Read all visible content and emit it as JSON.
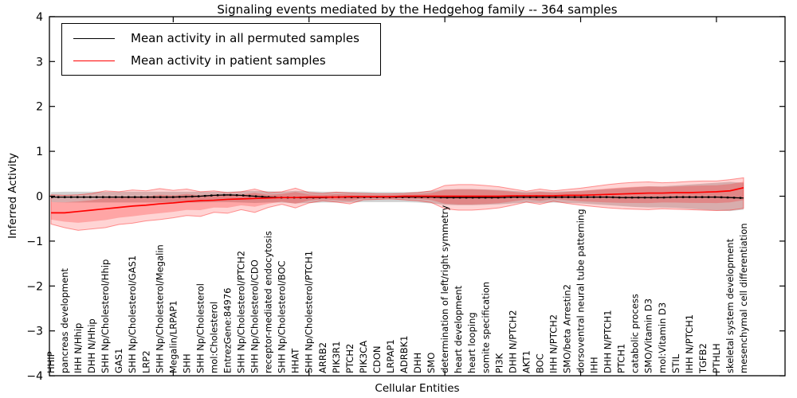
{
  "title": "Signaling events mediated by the Hedgehog family -- 364 samples",
  "chart_data": {
    "type": "line",
    "title": "Signaling events mediated by the Hedgehog family -- 364 samples",
    "xlabel": "Cellular Entities",
    "ylabel": "Inferred Activity",
    "ylim": [
      -4,
      4
    ],
    "yticks": [
      -4,
      -3,
      -2,
      -1,
      0,
      1,
      2,
      3,
      4
    ],
    "xticks_major": [
      10,
      20,
      30,
      40,
      50
    ],
    "grid": false,
    "legend_position": "upper left",
    "legend": [
      {
        "label": "Mean activity in all permuted samples",
        "color": "#000000"
      },
      {
        "label": "Mean activity in patient samples",
        "color": "#ff0000"
      }
    ],
    "categories": [
      "HHIP",
      "pancreas development",
      "IHH N/Hhip",
      "DHH N/Hhip",
      "SHH Np/Cholesterol/Hhip",
      "GAS1",
      "SHH Np/Cholesterol/GAS1",
      "LRP2",
      "SHH Np/Cholesterol/Megalin",
      "Megalin/LRPAP1",
      "SHH",
      "SHH Np/Cholesterol",
      "mol:Cholesterol",
      "EntrezGene:84976",
      "SHH Np/Cholesterol/PTCH2",
      "SHH Np/Cholesterol/CDO",
      "receptor-mediated endocytosis",
      "SHH Np/Cholesterol/BOC",
      "HHAT",
      "SHH Np/Cholesterol/PTCH1",
      "ARRB2",
      "PIK3R1",
      "PTCH2",
      "PIK3CA",
      "CDON",
      "LRPAP1",
      "ADRBK1",
      "DHH",
      "SMO",
      "determination of left/right symmetry",
      "heart development",
      "heart looping",
      "somite specification",
      "PI3K",
      "DHH N/PTCH2",
      "AKT1",
      "BOC",
      "IHH N/PTCH2",
      "SMO/beta Arrestin2",
      "dorsoventral neural tube patterning",
      "IHH",
      "DHH N/PTCH1",
      "PTCH1",
      "catabolic process",
      "SMO/Vitamin D3",
      "mol:Vitamin D3",
      "STIL",
      "IHH N/PTCH1",
      "TGFB2",
      "PTHLH",
      "skeletal system development",
      "mesenchymal cell differentiation"
    ],
    "series": [
      {
        "name": "Mean activity in all permuted samples",
        "color": "#000000",
        "values": [
          -0.02,
          -0.02,
          -0.02,
          -0.02,
          -0.02,
          -0.02,
          -0.02,
          -0.02,
          -0.02,
          -0.02,
          -0.01,
          0.0,
          0.02,
          0.03,
          0.02,
          0.0,
          -0.02,
          -0.03,
          -0.03,
          -0.03,
          -0.03,
          -0.02,
          -0.02,
          -0.02,
          -0.02,
          -0.02,
          -0.02,
          -0.02,
          -0.02,
          -0.03,
          -0.03,
          -0.03,
          -0.03,
          -0.03,
          -0.02,
          -0.02,
          -0.02,
          -0.02,
          -0.02,
          -0.02,
          -0.02,
          -0.02,
          -0.03,
          -0.03,
          -0.03,
          -0.03,
          -0.02,
          -0.02,
          -0.02,
          -0.02,
          -0.03,
          -0.04
        ]
      },
      {
        "name": "Mean activity in patient samples",
        "color": "#ff0000",
        "values": [
          -0.37,
          -0.37,
          -0.34,
          -0.31,
          -0.28,
          -0.25,
          -0.22,
          -0.2,
          -0.17,
          -0.15,
          -0.12,
          -0.1,
          -0.09,
          -0.07,
          -0.06,
          -0.05,
          -0.04,
          -0.03,
          -0.03,
          -0.02,
          -0.02,
          -0.02,
          -0.01,
          -0.01,
          -0.01,
          -0.01,
          0.0,
          0.0,
          0.0,
          0.0,
          0.0,
          0.0,
          0.0,
          0.0,
          0.01,
          0.01,
          0.01,
          0.01,
          0.02,
          0.02,
          0.03,
          0.04,
          0.05,
          0.06,
          0.07,
          0.07,
          0.08,
          0.08,
          0.09,
          0.1,
          0.12,
          0.19
        ]
      }
    ],
    "bands": [
      {
        "name": "permuted samples std band",
        "color": "#999999",
        "opacity": 0.45,
        "hi": [
          0.09,
          0.1,
          0.1,
          0.1,
          0.1,
          0.1,
          0.1,
          0.1,
          0.1,
          0.1,
          0.1,
          0.1,
          0.1,
          0.1,
          0.11,
          0.12,
          0.11,
          0.1,
          0.12,
          0.11,
          0.1,
          0.1,
          0.1,
          0.1,
          0.09,
          0.09,
          0.09,
          0.1,
          0.12,
          0.15,
          0.16,
          0.16,
          0.15,
          0.14,
          0.12,
          0.1,
          0.11,
          0.1,
          0.11,
          0.12,
          0.14,
          0.16,
          0.18,
          0.2,
          0.22,
          0.22,
          0.24,
          0.26,
          0.28,
          0.3,
          0.32,
          0.3
        ],
        "lo": [
          -0.13,
          -0.14,
          -0.14,
          -0.14,
          -0.14,
          -0.14,
          -0.14,
          -0.14,
          -0.14,
          -0.14,
          -0.14,
          -0.14,
          -0.13,
          -0.13,
          -0.14,
          -0.15,
          -0.14,
          -0.14,
          -0.16,
          -0.15,
          -0.14,
          -0.14,
          -0.14,
          -0.13,
          -0.13,
          -0.13,
          -0.13,
          -0.14,
          -0.16,
          -0.19,
          -0.2,
          -0.2,
          -0.19,
          -0.18,
          -0.16,
          -0.14,
          -0.15,
          -0.14,
          -0.15,
          -0.16,
          -0.18,
          -0.2,
          -0.22,
          -0.24,
          -0.25,
          -0.25,
          -0.26,
          -0.28,
          -0.3,
          -0.32,
          -0.33,
          -0.3
        ]
      },
      {
        "name": "patient samples std band",
        "color": "#ff0000",
        "opacity": 0.17,
        "hi": [
          0.03,
          0.02,
          0.03,
          0.06,
          0.12,
          0.1,
          0.14,
          0.12,
          0.17,
          0.13,
          0.16,
          0.1,
          0.12,
          0.08,
          0.1,
          0.16,
          0.08,
          0.1,
          0.18,
          0.08,
          0.06,
          0.09,
          0.07,
          0.06,
          0.05,
          0.05,
          0.06,
          0.08,
          0.12,
          0.24,
          0.26,
          0.26,
          0.24,
          0.21,
          0.16,
          0.11,
          0.16,
          0.12,
          0.15,
          0.18,
          0.22,
          0.26,
          0.29,
          0.31,
          0.32,
          0.3,
          0.31,
          0.33,
          0.34,
          0.34,
          0.37,
          0.41
        ],
        "lo": [
          -0.62,
          -0.7,
          -0.76,
          -0.73,
          -0.7,
          -0.63,
          -0.6,
          -0.55,
          -0.52,
          -0.48,
          -0.43,
          -0.45,
          -0.36,
          -0.38,
          -0.3,
          -0.36,
          -0.25,
          -0.18,
          -0.26,
          -0.15,
          -0.1,
          -0.13,
          -0.17,
          -0.08,
          -0.07,
          -0.06,
          -0.08,
          -0.1,
          -0.14,
          -0.28,
          -0.31,
          -0.31,
          -0.29,
          -0.26,
          -0.2,
          -0.13,
          -0.18,
          -0.11,
          -0.16,
          -0.2,
          -0.23,
          -0.26,
          -0.28,
          -0.29,
          -0.3,
          -0.28,
          -0.29,
          -0.3,
          -0.31,
          -0.32,
          -0.31,
          -0.27
        ]
      }
    ]
  }
}
